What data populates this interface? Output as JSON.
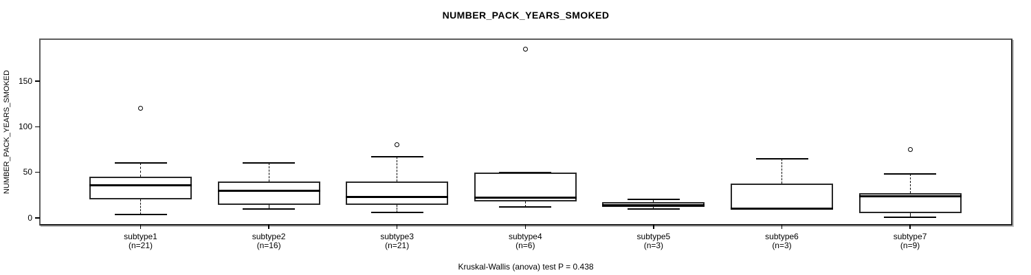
{
  "title": "NUMBER_PACK_YEARS_SMOKED",
  "caption": "Kruskal-Wallis (anova) test P = 0.438",
  "chart_data": {
    "type": "boxplot",
    "title": "NUMBER_PACK_YEARS_SMOKED",
    "ylabel": "NUMBER_PACK_YEARS_SMOKED",
    "xlabel": "",
    "yticks": [
      0,
      50,
      100,
      150
    ],
    "ylim": [
      0,
      195
    ],
    "grid": false,
    "subtitle_stat": "Kruskal-Wallis (anova) test P = 0.438",
    "groups": [
      {
        "label": "subtype1",
        "n_label": "(n=21)",
        "n": 21,
        "whisker_low": 4,
        "q1": 20,
        "median": 36,
        "q3": 45,
        "whisker_high": 60,
        "outliers": [
          120
        ]
      },
      {
        "label": "subtype2",
        "n_label": "(n=16)",
        "n": 16,
        "whisker_low": 10,
        "q1": 14,
        "median": 30,
        "q3": 40,
        "whisker_high": 60,
        "outliers": []
      },
      {
        "label": "subtype3",
        "n_label": "(n=21)",
        "n": 21,
        "whisker_low": 6,
        "q1": 14,
        "median": 23,
        "q3": 40,
        "whisker_high": 67,
        "outliers": [
          80
        ]
      },
      {
        "label": "subtype4",
        "n_label": "(n=6)",
        "n": 6,
        "whisker_low": 12,
        "q1": 18,
        "median": 22,
        "q3": 50,
        "whisker_high": 50,
        "outliers": [
          185
        ]
      },
      {
        "label": "subtype5",
        "n_label": "(n=3)",
        "n": 3,
        "whisker_low": 10,
        "q1": 12,
        "median": 14,
        "q3": 17,
        "whisker_high": 20,
        "outliers": []
      },
      {
        "label": "subtype6",
        "n_label": "(n=3)",
        "n": 3,
        "whisker_low": 10,
        "q1": 10,
        "median": 10,
        "q3": 37.5,
        "whisker_high": 65,
        "outliers": []
      },
      {
        "label": "subtype7",
        "n_label": "(n=9)",
        "n": 9,
        "whisker_low": 1,
        "q1": 5,
        "median": 24,
        "q3": 27,
        "whisker_high": 48,
        "outliers": [
          75
        ]
      }
    ],
    "colors": {
      "line": "#000000",
      "box_fill": "#ffffff",
      "box_border": "#262626",
      "plot_border": "#5c5c5c",
      "background": "#ffffff"
    }
  }
}
